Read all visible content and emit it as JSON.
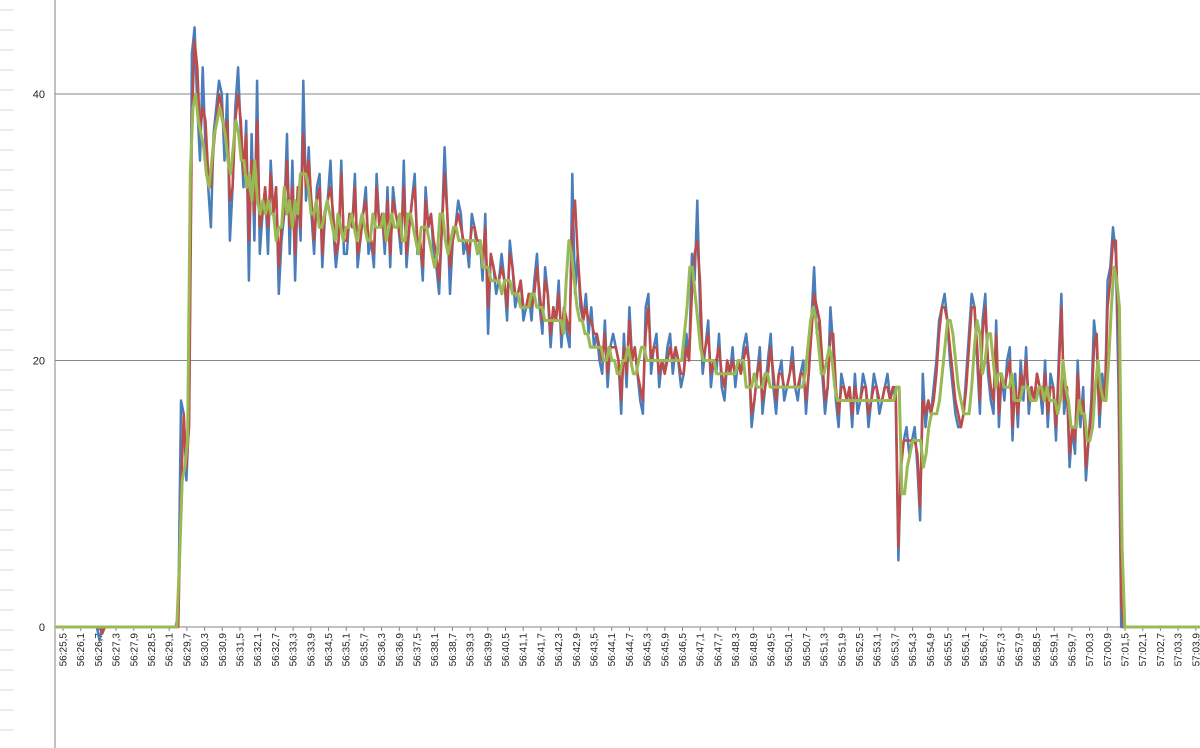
{
  "chart_data": {
    "type": "line",
    "title": "",
    "xlabel": "",
    "ylabel": "",
    "ylim": [
      0,
      45
    ],
    "yticks": [
      0,
      20,
      40
    ],
    "grid": "horizontal major gridlines",
    "legend": "none",
    "x_ticks": [
      "56:25,5",
      "56:26,1",
      "56:26,7",
      "56:27,3",
      "56:27,9",
      "56:28,5",
      "56:29,1",
      "56:29,7",
      "56:30,3",
      "56:30,9",
      "56:31,5",
      "56:32,1",
      "56:32,7",
      "56:33,3",
      "56:33,9",
      "56:34,5",
      "56:35,1",
      "56:35,7",
      "56:36,3",
      "56:36,9",
      "56:37,5",
      "56:38,1",
      "56:38,7",
      "56:39,3",
      "56:39,9",
      "56:40,5",
      "56:41,1",
      "56:41,7",
      "56:42,3",
      "56:42,9",
      "56:43,5",
      "56:44,1",
      "56:44,7",
      "56:45,3",
      "56:45,9",
      "56:46,5",
      "56:47,1",
      "56:47,7",
      "56:48,3",
      "56:48,9",
      "56:49,5",
      "56:50,1",
      "56:50,7",
      "56:51,3",
      "56:51,9",
      "56:52,5",
      "56:53,1",
      "56:53,7",
      "56:54,3",
      "56:54,9",
      "56:55,5",
      "56:56,1",
      "56:56,7",
      "56:57,3",
      "56:57,9",
      "56:58,5",
      "56:59,1",
      "56:59,7",
      "57:00,3",
      "57:00,9",
      "57:01,5",
      "57:02,1",
      "57:02,7",
      "57:03,3",
      "57:03,9"
    ],
    "series": [
      {
        "color": "#4a7ebb",
        "values": [
          0,
          0,
          0,
          0,
          0,
          0,
          0,
          0,
          0,
          0,
          0,
          0,
          0,
          0,
          0,
          0,
          -1,
          0,
          0,
          0,
          0,
          0,
          0,
          0,
          0,
          0,
          0,
          0,
          0,
          0,
          0,
          0,
          0,
          0,
          0,
          0,
          0,
          0,
          0,
          0,
          0,
          0,
          0,
          0,
          0,
          1,
          17,
          16,
          11,
          16,
          43,
          45,
          39,
          35,
          42,
          36,
          33,
          30,
          37,
          39,
          41,
          40,
          35,
          40,
          29,
          33,
          39,
          42,
          37,
          33,
          38,
          26,
          37,
          29,
          41,
          28,
          31,
          33,
          28,
          35,
          31,
          33,
          25,
          29,
          31,
          37,
          28,
          35,
          26,
          33,
          29,
          41,
          32,
          36,
          31,
          28,
          33,
          34,
          27,
          31,
          32,
          35,
          30,
          27,
          29,
          35,
          28,
          28,
          31,
          30,
          34,
          27,
          29,
          31,
          33,
          28,
          29,
          27,
          34,
          30,
          31,
          28,
          33,
          27,
          33,
          31,
          30,
          28,
          35,
          27,
          30,
          32,
          34,
          28,
          29,
          26,
          33,
          30,
          31,
          28,
          27,
          25,
          30,
          36,
          31,
          25,
          29,
          30,
          32,
          31,
          28,
          29,
          27,
          31,
          30,
          28,
          29,
          26,
          31,
          22,
          28,
          27,
          25,
          26,
          28,
          26,
          23,
          29,
          27,
          24,
          25,
          26,
          23,
          24,
          25,
          23,
          26,
          28,
          24,
          22,
          27,
          25,
          21,
          24,
          23,
          26,
          21,
          24,
          22,
          21,
          34,
          25,
          28,
          24,
          23,
          25,
          22,
          24,
          21,
          22,
          20,
          19,
          23,
          18,
          21,
          22,
          21,
          20,
          16,
          22,
          18,
          24,
          20,
          21,
          19,
          17,
          16,
          24,
          25,
          19,
          21,
          22,
          18,
          20,
          19,
          21,
          22,
          19,
          21,
          20,
          18,
          19,
          22,
          20,
          28,
          26,
          32,
          24,
          19,
          21,
          23,
          18,
          20,
          19,
          22,
          18,
          17,
          20,
          19,
          21,
          18,
          20,
          19,
          21,
          22,
          20,
          15,
          17,
          19,
          21,
          16,
          18,
          20,
          22,
          18,
          16,
          19,
          20,
          17,
          18,
          19,
          21,
          18,
          17,
          19,
          20,
          16,
          19,
          23,
          27,
          22,
          23,
          19,
          16,
          18,
          24,
          21,
          17,
          15,
          19,
          18,
          17,
          18,
          15,
          19,
          16,
          17,
          19,
          18,
          15,
          17,
          19,
          18,
          16,
          17,
          18,
          19,
          17,
          18,
          17,
          5,
          13,
          14,
          15,
          13,
          14,
          15,
          12,
          8,
          19,
          15,
          17,
          16,
          18,
          20,
          23,
          24,
          25,
          23,
          20,
          18,
          16,
          15,
          15,
          16,
          19,
          22,
          25,
          24,
          20,
          16,
          23,
          25,
          19,
          17,
          16,
          23,
          15,
          19,
          17,
          20,
          21,
          14,
          19,
          15,
          20,
          17,
          21,
          16,
          18,
          17,
          19,
          18,
          16,
          20,
          15,
          19,
          18,
          14,
          20,
          25,
          16,
          18,
          12,
          15,
          13,
          20,
          15,
          18,
          11,
          14,
          17,
          23,
          21,
          15,
          19,
          17,
          26,
          27,
          30,
          28,
          18,
          0,
          0,
          0,
          0,
          0,
          0,
          0,
          0,
          0,
          0,
          0,
          0,
          0,
          0,
          0,
          0,
          0,
          0,
          0,
          0,
          0,
          0,
          0,
          0,
          0,
          0,
          0,
          0,
          0,
          0
        ]
      },
      {
        "color": "#be4b48",
        "values": [
          0,
          0,
          0,
          0,
          0,
          0,
          0,
          0,
          0,
          0,
          0,
          0,
          0,
          0,
          0,
          0,
          0,
          -0.5,
          0,
          0,
          0,
          0,
          0,
          0,
          0,
          0,
          0,
          0,
          0,
          0,
          0,
          0,
          0,
          0,
          0,
          0,
          0,
          0,
          0,
          0,
          0,
          0,
          0,
          0,
          0,
          0,
          10,
          16,
          12,
          15,
          38,
          44,
          42,
          37,
          39,
          38,
          34,
          33,
          36,
          38,
          40,
          39,
          37,
          38,
          32,
          33,
          38,
          40,
          38,
          34,
          37,
          29,
          35,
          31,
          38,
          30,
          31,
          33,
          30,
          34,
          31,
          33,
          27,
          30,
          31,
          35,
          30,
          33,
          28,
          33,
          30,
          37,
          33,
          35,
          32,
          29,
          32,
          33,
          28,
          31,
          32,
          33,
          31,
          28,
          29,
          34,
          29,
          29,
          31,
          30,
          33,
          28,
          29,
          31,
          32,
          29,
          29,
          28,
          33,
          30,
          31,
          29,
          32,
          28,
          32,
          31,
          30,
          29,
          33,
          28,
          30,
          32,
          33,
          29,
          29,
          27,
          32,
          30,
          31,
          29,
          28,
          26,
          30,
          34,
          31,
          27,
          29,
          30,
          31,
          30,
          29,
          29,
          28,
          30,
          30,
          29,
          29,
          27,
          30,
          24,
          28,
          27,
          26,
          26,
          27,
          26,
          24,
          28,
          27,
          25,
          25,
          26,
          24,
          24,
          25,
          24,
          25,
          27,
          25,
          23,
          26,
          25,
          22,
          24,
          23,
          25,
          22,
          24,
          23,
          22,
          30,
          32,
          28,
          25,
          23,
          24,
          23,
          23,
          22,
          22,
          21,
          20,
          22,
          19,
          21,
          21,
          21,
          20,
          17,
          21,
          19,
          23,
          20,
          21,
          19,
          18,
          17,
          22,
          24,
          20,
          21,
          21,
          19,
          20,
          19,
          20,
          21,
          20,
          21,
          20,
          19,
          19,
          21,
          20,
          25,
          28,
          29,
          26,
          20,
          21,
          22,
          19,
          20,
          20,
          21,
          19,
          18,
          20,
          19,
          20,
          19,
          20,
          19,
          20,
          21,
          20,
          16,
          17,
          19,
          20,
          17,
          18,
          19,
          21,
          19,
          17,
          19,
          19,
          18,
          18,
          19,
          20,
          18,
          18,
          19,
          19,
          17,
          19,
          22,
          25,
          24,
          23,
          20,
          17,
          18,
          22,
          22,
          18,
          16,
          18,
          18,
          17,
          18,
          16,
          18,
          17,
          17,
          18,
          18,
          16,
          17,
          18,
          18,
          17,
          17,
          18,
          18,
          17,
          18,
          18,
          6,
          12,
          14,
          14,
          14,
          14,
          14,
          13,
          9,
          17,
          16,
          17,
          16,
          17,
          19,
          22,
          24,
          24,
          23,
          21,
          19,
          17,
          16,
          15,
          16,
          18,
          21,
          24,
          24,
          21,
          17,
          22,
          24,
          20,
          18,
          17,
          22,
          16,
          19,
          18,
          19,
          20,
          15,
          18,
          16,
          19,
          18,
          20,
          17,
          18,
          17,
          19,
          18,
          17,
          19,
          16,
          18,
          18,
          15,
          19,
          24,
          17,
          18,
          13,
          15,
          14,
          19,
          16,
          17,
          12,
          14,
          16,
          21,
          22,
          16,
          18,
          17,
          24,
          26,
          29,
          29,
          22,
          2,
          0,
          0,
          0,
          0,
          0,
          0,
          0,
          0,
          0,
          0,
          0,
          0,
          0,
          0,
          0,
          0,
          0,
          0,
          0,
          0,
          0,
          0,
          0,
          0,
          0,
          0,
          0,
          0,
          0
        ]
      },
      {
        "color": "#98b954",
        "values": [
          0,
          0,
          0,
          0,
          0,
          0,
          0,
          0,
          0,
          0,
          0,
          0,
          0,
          0,
          0,
          0,
          0,
          0,
          0,
          0,
          0,
          0,
          0,
          0,
          0,
          0,
          0,
          0,
          0,
          0,
          0,
          0,
          0,
          0,
          0,
          0,
          0,
          0,
          0,
          0,
          0,
          0,
          0,
          0,
          0,
          0,
          5,
          11,
          12,
          14,
          34,
          39,
          40,
          38,
          37,
          36,
          34,
          33,
          35,
          37,
          38,
          39,
          38,
          37,
          35,
          34,
          36,
          38,
          37,
          35,
          35,
          33,
          34,
          32,
          35,
          32,
          31,
          32,
          31,
          32,
          31,
          31,
          29,
          30,
          30,
          33,
          31,
          32,
          30,
          32,
          31,
          34,
          34,
          34,
          33,
          31,
          31,
          32,
          30,
          30,
          31,
          32,
          31,
          30,
          29,
          31,
          30,
          29,
          30,
          30,
          31,
          30,
          29,
          30,
          31,
          30,
          29,
          29,
          31,
          30,
          30,
          30,
          31,
          29,
          30,
          31,
          30,
          30,
          31,
          29,
          29,
          31,
          31,
          30,
          29,
          28,
          30,
          30,
          30,
          29,
          28,
          27,
          28,
          31,
          31,
          29,
          28,
          29,
          30,
          30,
          29,
          29,
          29,
          29,
          29,
          29,
          29,
          28,
          29,
          27,
          27,
          27,
          26,
          26,
          26,
          26,
          25,
          26,
          26,
          26,
          25,
          25,
          25,
          24,
          24,
          24,
          24,
          25,
          25,
          24,
          24,
          24,
          23,
          23,
          23,
          23,
          23,
          23,
          23,
          22,
          26,
          29,
          28,
          26,
          24,
          23,
          23,
          22,
          22,
          21,
          21,
          21,
          21,
          21,
          20,
          20,
          21,
          20,
          20,
          19,
          19,
          20,
          20,
          21,
          20,
          19,
          19,
          20,
          21,
          21,
          20,
          20,
          20,
          20,
          20,
          20,
          20,
          20,
          20,
          20,
          20,
          20,
          20,
          20,
          22,
          24,
          27,
          27,
          25,
          23,
          21,
          20,
          20,
          20,
          20,
          20,
          19,
          19,
          19,
          19,
          19,
          19,
          19,
          19,
          20,
          20,
          20,
          18,
          18,
          18,
          19,
          18,
          18,
          18,
          19,
          19,
          18,
          18,
          18,
          18,
          18,
          18,
          18,
          18,
          18,
          18,
          18,
          18,
          18,
          19,
          21,
          23,
          24,
          23,
          21,
          19,
          19,
          20,
          21,
          20,
          18,
          17,
          17,
          17,
          17,
          17,
          17,
          17,
          17,
          17,
          17,
          17,
          17,
          17,
          17,
          17,
          17,
          17,
          17,
          17,
          17,
          17,
          17,
          18,
          18,
          10,
          10,
          12,
          13,
          14,
          14,
          14,
          14,
          12,
          13,
          15,
          16,
          16,
          16,
          17,
          19,
          21,
          23,
          23,
          22,
          20,
          18,
          17,
          16,
          16,
          16,
          18,
          21,
          23,
          22,
          19,
          20,
          22,
          22,
          20,
          18,
          19,
          19,
          18,
          18,
          18,
          19,
          17,
          17,
          17,
          18,
          18,
          18,
          17,
          17,
          17,
          18,
          18,
          17,
          18,
          17,
          17,
          17,
          16,
          17,
          20,
          18,
          17,
          15,
          15,
          15,
          17,
          16,
          16,
          14,
          14,
          15,
          18,
          20,
          18,
          17,
          17,
          20,
          24,
          27,
          26,
          24,
          6,
          0,
          0,
          0,
          0,
          0,
          0,
          0,
          0,
          0,
          0,
          0,
          0,
          0,
          0,
          0,
          0,
          0,
          0,
          0,
          0,
          0,
          0,
          0,
          0,
          0,
          0,
          0,
          0,
          0
        ]
      }
    ]
  }
}
